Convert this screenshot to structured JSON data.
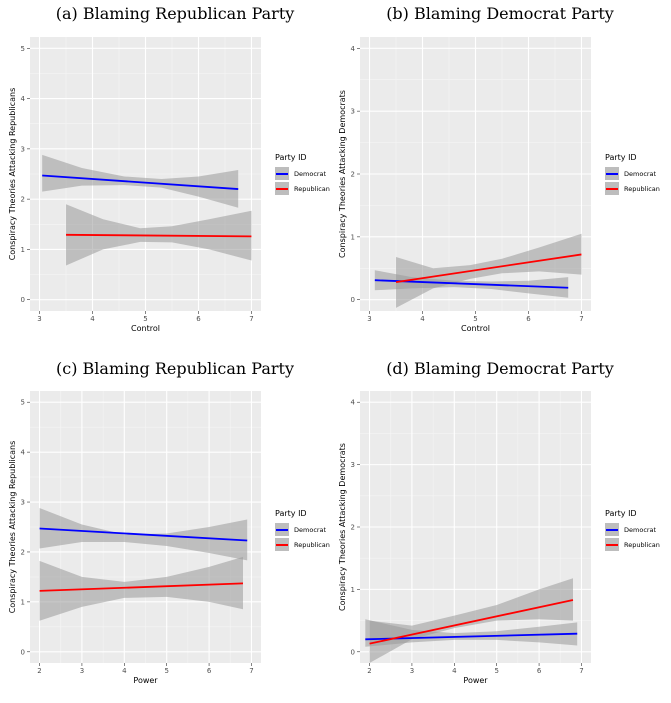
{
  "chart_data": [
    {
      "type": "line",
      "title": "(a) Blaming Republican Party",
      "xlabel": "Control",
      "ylabel": "Conspiracy Theories Attacking Republicans",
      "xlim": [
        3,
        7
      ],
      "ylim": [
        0,
        5
      ],
      "xticks": [
        3,
        4,
        5,
        6,
        7
      ],
      "yticks": [
        0,
        1,
        2,
        3,
        4,
        5
      ],
      "grid": true,
      "legend": {
        "title": "Party ID",
        "position": "right"
      },
      "series": [
        {
          "name": "Democrat",
          "color": "#0000ff",
          "x": [
            3.05,
            6.75
          ],
          "y": [
            2.47,
            2.2
          ],
          "ci": {
            "x": [
              3.05,
              3.8,
              4.6,
              5.3,
              6.0,
              6.75
            ],
            "lower": [
              2.15,
              2.27,
              2.28,
              2.23,
              2.05,
              1.83
            ],
            "upper": [
              2.88,
              2.62,
              2.45,
              2.4,
              2.45,
              2.58
            ]
          }
        },
        {
          "name": "Republican",
          "color": "#ff0000",
          "x": [
            3.5,
            7.0
          ],
          "y": [
            1.29,
            1.26
          ],
          "ci": {
            "x": [
              3.5,
              4.2,
              4.9,
              5.5,
              6.2,
              7.0
            ],
            "lower": [
              0.68,
              1.0,
              1.15,
              1.14,
              1.0,
              0.78
            ],
            "upper": [
              1.9,
              1.6,
              1.42,
              1.46,
              1.6,
              1.77
            ]
          }
        }
      ]
    },
    {
      "type": "line",
      "title": "(b) Blaming Democrat Party",
      "xlabel": "Control",
      "ylabel": "Conspiracy Theories Attacking Democrats",
      "xlim": [
        3,
        7
      ],
      "ylim": [
        0,
        4
      ],
      "xticks": [
        3,
        4,
        5,
        6,
        7
      ],
      "yticks": [
        0,
        1,
        2,
        3,
        4
      ],
      "grid": true,
      "legend": {
        "title": "Party ID",
        "position": "right"
      },
      "series": [
        {
          "name": "Democrat",
          "color": "#0000ff",
          "x": [
            3.1,
            6.75
          ],
          "y": [
            0.31,
            0.19
          ],
          "ci": {
            "x": [
              3.1,
              3.8,
              4.6,
              5.3,
              6.0,
              6.75
            ],
            "lower": [
              0.15,
              0.18,
              0.2,
              0.17,
              0.1,
              0.03
            ],
            "upper": [
              0.47,
              0.36,
              0.3,
              0.29,
              0.3,
              0.36
            ]
          }
        },
        {
          "name": "Republican",
          "color": "#ff0000",
          "x": [
            3.5,
            7.0
          ],
          "y": [
            0.28,
            0.72
          ],
          "ci": {
            "x": [
              3.5,
              4.2,
              4.9,
              5.5,
              6.2,
              7.0
            ],
            "lower": [
              -0.13,
              0.18,
              0.33,
              0.42,
              0.45,
              0.4
            ],
            "upper": [
              0.68,
              0.5,
              0.55,
              0.65,
              0.83,
              1.05
            ]
          }
        }
      ]
    },
    {
      "type": "line",
      "title": "(c) Blaming Republican Party",
      "xlabel": "Power",
      "ylabel": "Conspiracy Theories Attacking Republicans",
      "xlim": [
        2,
        7
      ],
      "ylim": [
        0,
        5
      ],
      "xticks": [
        2,
        3,
        4,
        5,
        6,
        7
      ],
      "yticks": [
        0,
        1,
        2,
        3,
        4,
        5
      ],
      "grid": true,
      "legend": {
        "title": "Party ID",
        "position": "right"
      },
      "series": [
        {
          "name": "Democrat",
          "color": "#0000ff",
          "x": [
            2.0,
            6.9
          ],
          "y": [
            2.47,
            2.23
          ],
          "ci": {
            "x": [
              2.0,
              3.0,
              4.0,
              5.0,
              6.0,
              6.9
            ],
            "lower": [
              2.07,
              2.2,
              2.2,
              2.12,
              1.98,
              1.83
            ],
            "upper": [
              2.88,
              2.55,
              2.35,
              2.37,
              2.5,
              2.65
            ]
          }
        },
        {
          "name": "Republican",
          "color": "#ff0000",
          "x": [
            2.0,
            6.8
          ],
          "y": [
            1.22,
            1.37
          ],
          "ci": {
            "x": [
              2.0,
              3.0,
              4.0,
              5.0,
              6.0,
              6.8
            ],
            "lower": [
              0.62,
              0.9,
              1.08,
              1.1,
              1.0,
              0.85
            ],
            "upper": [
              1.82,
              1.5,
              1.4,
              1.5,
              1.7,
              1.9
            ]
          }
        }
      ]
    },
    {
      "type": "line",
      "title": "(d) Blaming Democrat Party",
      "xlabel": "Power",
      "ylabel": "Conspiracy Theories Attacking Democrats",
      "xlim": [
        2,
        7
      ],
      "ylim": [
        0,
        4
      ],
      "xticks": [
        2,
        3,
        4,
        5,
        6,
        7
      ],
      "yticks": [
        0,
        1,
        2,
        3,
        4
      ],
      "grid": true,
      "legend": {
        "title": "Party ID",
        "position": "right"
      },
      "series": [
        {
          "name": "Democrat",
          "color": "#0000ff",
          "x": [
            1.9,
            6.9
          ],
          "y": [
            0.2,
            0.29
          ],
          "ci": {
            "x": [
              1.9,
              3.0,
              4.0,
              5.0,
              6.0,
              6.9
            ],
            "lower": [
              0.08,
              0.15,
              0.19,
              0.19,
              0.15,
              0.1
            ],
            "upper": [
              0.52,
              0.35,
              0.3,
              0.33,
              0.4,
              0.47
            ]
          }
        },
        {
          "name": "Republican",
          "color": "#ff0000",
          "x": [
            2.0,
            6.8
          ],
          "y": [
            0.13,
            0.83
          ],
          "ci": {
            "x": [
              2.0,
              3.0,
              4.0,
              5.0,
              6.0,
              6.8
            ],
            "lower": [
              -0.25,
              0.2,
              0.38,
              0.5,
              0.52,
              0.5
            ],
            "upper": [
              0.5,
              0.42,
              0.58,
              0.75,
              1.0,
              1.18
            ]
          }
        }
      ]
    }
  ]
}
